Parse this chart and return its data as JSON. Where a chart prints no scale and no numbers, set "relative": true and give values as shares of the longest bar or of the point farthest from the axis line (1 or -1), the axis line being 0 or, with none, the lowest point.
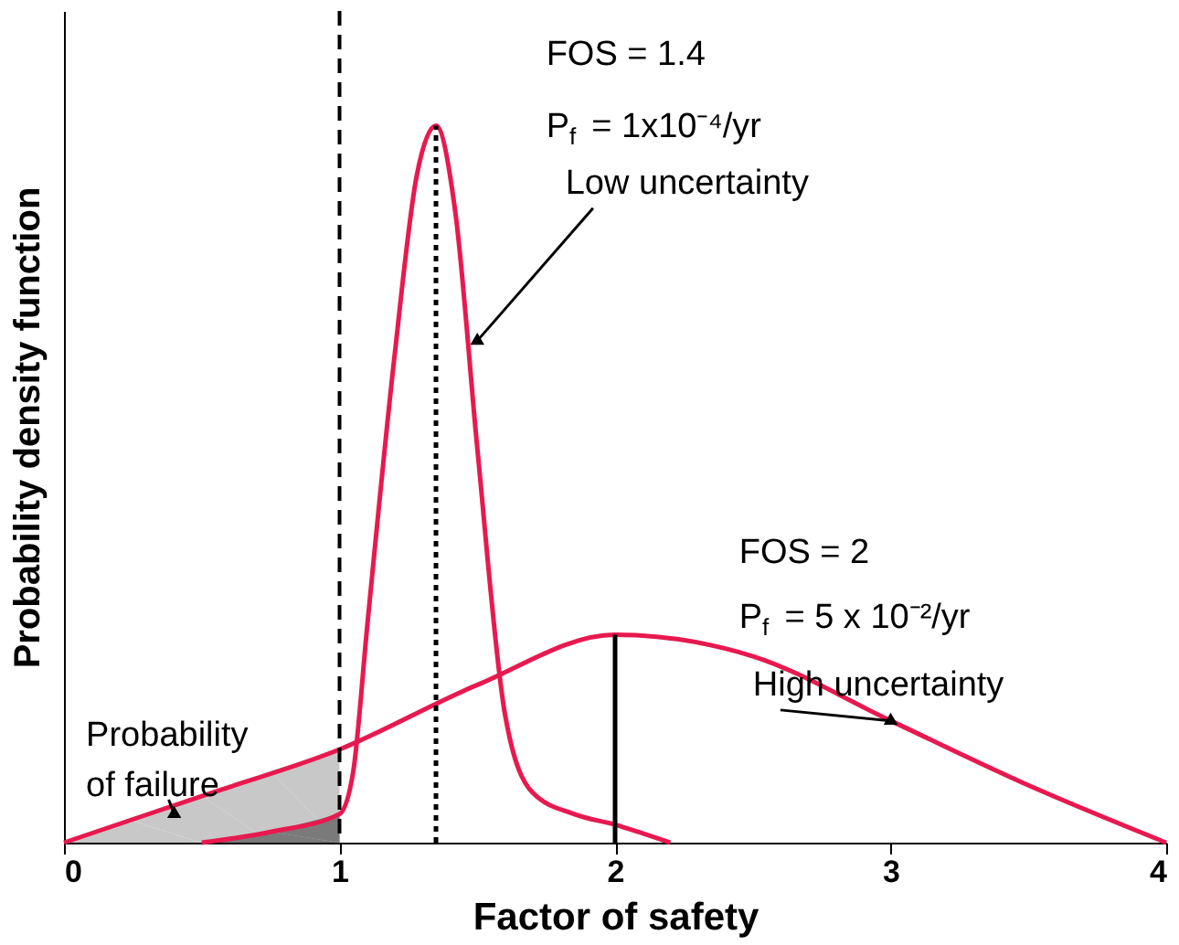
{
  "chart_data": {
    "type": "line",
    "relative": true,
    "xlabel": "Factor of safety",
    "ylabel": "Probability density function",
    "xlim": [
      0,
      4
    ],
    "xticks": [
      0,
      1,
      2,
      3,
      4
    ],
    "grid": false,
    "tick_labels": "x",
    "series": [
      {
        "type": "area",
        "color": "#c8c8c8",
        "x": [
          0,
          0.25,
          0.5,
          0.75,
          1
        ],
        "values": [
          0,
          0.03,
          0.065,
          0.1,
          0.13
        ]
      },
      {
        "type": "area",
        "color": "#7a7a7a",
        "x": [
          0.5,
          0.75,
          1
        ],
        "values": [
          0,
          0.015,
          0.04
        ]
      },
      {
        "type": "line",
        "color": "#e8194f",
        "line_style": "solid",
        "x": [
          0,
          0.5,
          1,
          1.5,
          2,
          2.5,
          3,
          3.5,
          4
        ],
        "values": [
          0,
          0.065,
          0.13,
          0.22,
          0.29,
          0.26,
          0.17,
          0.08,
          0
        ]
      },
      {
        "type": "line",
        "color": "#e8194f",
        "line_style": "solid",
        "x": [
          0.5,
          0.75,
          1,
          1.05,
          1.1,
          1.2,
          1.28,
          1.35,
          1.42,
          1.5,
          1.6,
          1.7,
          1.85,
          2,
          2.2
        ],
        "values": [
          0,
          0.015,
          0.04,
          0.1,
          0.3,
          0.68,
          0.93,
          1,
          0.88,
          0.55,
          0.18,
          0.07,
          0.04,
          0.025,
          0
        ]
      },
      {
        "type": "line",
        "color": "#000000",
        "line_style": "dotted",
        "x": [
          1.35,
          1.35
        ],
        "values": [
          0,
          1
        ]
      },
      {
        "type": "line",
        "color": "#000000",
        "line_style": "solid",
        "x": [
          2,
          2
        ],
        "values": [
          0,
          0.29
        ]
      }
    ],
    "ref_lines": [
      {
        "axis": "x",
        "value": 1,
        "color": "#000000",
        "line_style": "dashed"
      }
    ],
    "annotations": [
      "FOS = 1.4",
      "P$_{f}$ = 1x10⁻⁴/yr",
      {
        "text": "Low uncertainty",
        "x": 1.5,
        "y": 0.7
      },
      "FOS = 2",
      "P$_{f}$ = 5 x 10⁻²/yr",
      {
        "text": "High uncertainty",
        "x": 3.0,
        "y": 0.17
      },
      "Probability",
      {
        "text": "of failure",
        "x": 0.4,
        "y": 0.04
      }
    ]
  }
}
